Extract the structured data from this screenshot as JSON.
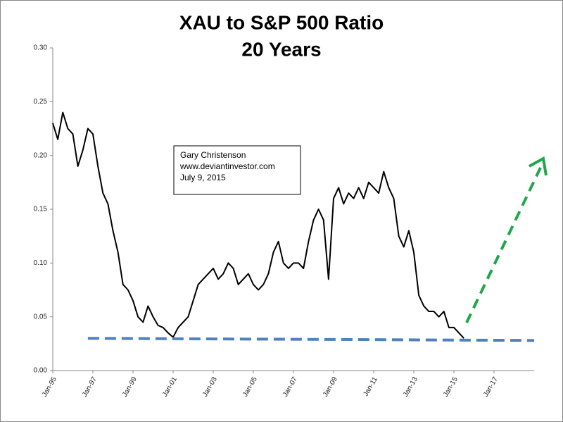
{
  "chart_data": {
    "type": "line",
    "title": [
      "XAU to S&P 500 Ratio",
      "20 Years"
    ],
    "annotation": [
      "Gary Christenson",
      "www.deviantinvestor.com",
      "July 9, 2015"
    ],
    "series": [
      {
        "color": "#000000",
        "style": "solid",
        "x": [
          "1995-01",
          "1995-04",
          "1995-07",
          "1995-10",
          "1996-01",
          "1996-04",
          "1996-07",
          "1996-10",
          "1997-01",
          "1997-04",
          "1997-07",
          "1997-10",
          "1998-01",
          "1998-04",
          "1998-07",
          "1998-10",
          "1999-01",
          "1999-04",
          "1999-07",
          "1999-10",
          "2000-01",
          "2000-04",
          "2000-07",
          "2000-10",
          "2001-01",
          "2001-04",
          "2001-07",
          "2001-10",
          "2002-01",
          "2002-04",
          "2002-07",
          "2002-10",
          "2003-01",
          "2003-04",
          "2003-07",
          "2003-10",
          "2004-01",
          "2004-04",
          "2004-07",
          "2004-10",
          "2005-01",
          "2005-04",
          "2005-07",
          "2005-10",
          "2006-01",
          "2006-04",
          "2006-07",
          "2006-10",
          "2007-01",
          "2007-04",
          "2007-07",
          "2007-10",
          "2008-01",
          "2008-04",
          "2008-07",
          "2008-10",
          "2009-01",
          "2009-04",
          "2009-07",
          "2009-10",
          "2010-01",
          "2010-04",
          "2010-07",
          "2010-10",
          "2011-01",
          "2011-04",
          "2011-07",
          "2011-10",
          "2012-01",
          "2012-04",
          "2012-07",
          "2012-10",
          "2013-01",
          "2013-04",
          "2013-07",
          "2013-10",
          "2014-01",
          "2014-04",
          "2014-07",
          "2014-10",
          "2015-01",
          "2015-04",
          "2015-07"
        ],
        "values": [
          0.23,
          0.215,
          0.24,
          0.225,
          0.22,
          0.19,
          0.205,
          0.225,
          0.22,
          0.19,
          0.165,
          0.155,
          0.13,
          0.11,
          0.08,
          0.075,
          0.065,
          0.05,
          0.045,
          0.06,
          0.05,
          0.042,
          0.04,
          0.035,
          0.031,
          0.04,
          0.045,
          0.05,
          0.065,
          0.08,
          0.085,
          0.09,
          0.095,
          0.085,
          0.09,
          0.1,
          0.095,
          0.08,
          0.085,
          0.09,
          0.08,
          0.075,
          0.08,
          0.09,
          0.11,
          0.12,
          0.1,
          0.095,
          0.1,
          0.1,
          0.095,
          0.12,
          0.14,
          0.15,
          0.14,
          0.085,
          0.16,
          0.17,
          0.155,
          0.165,
          0.16,
          0.17,
          0.16,
          0.175,
          0.17,
          0.165,
          0.185,
          0.17,
          0.16,
          0.125,
          0.115,
          0.13,
          0.11,
          0.07,
          0.06,
          0.055,
          0.055,
          0.05,
          0.055,
          0.04,
          0.04,
          0.035,
          0.03
        ]
      },
      {
        "color": "#4f81bd",
        "style": "dashed",
        "x": [
          "1996-10",
          "2019-01"
        ],
        "values": [
          0.03,
          0.028
        ]
      }
    ],
    "xlim": [
      "1995-01",
      "2019-01"
    ],
    "xticks": [
      {
        "value": "1995-01",
        "label": "Jan-95"
      },
      {
        "value": "1997-01",
        "label": "Jan-97"
      },
      {
        "value": "1999-01",
        "label": "Jan-99"
      },
      {
        "value": "2001-01",
        "label": "Jan-01"
      },
      {
        "value": "2003-01",
        "label": "Jan-03"
      },
      {
        "value": "2005-01",
        "label": "Jan-05"
      },
      {
        "value": "2007-01",
        "label": "Jan-07"
      },
      {
        "value": "2009-01",
        "label": "Jan-09"
      },
      {
        "value": "2011-01",
        "label": "Jan-11"
      },
      {
        "value": "2013-01",
        "label": "Jan-13"
      },
      {
        "value": "2015-01",
        "label": "Jan-15"
      },
      {
        "value": "2017-01",
        "label": "Jan-17"
      }
    ],
    "ylim": [
      0,
      0.3
    ],
    "yticks": [
      {
        "value": 0,
        "label": "0.00"
      },
      {
        "value": 0.05,
        "label": "0.05"
      },
      {
        "value": 0.1,
        "label": "0.10"
      },
      {
        "value": 0.15,
        "label": "0.15"
      },
      {
        "value": 0.2,
        "label": "0.20"
      },
      {
        "value": 0.25,
        "label": "0.25"
      },
      {
        "value": 0.3,
        "label": "0.30"
      }
    ]
  }
}
